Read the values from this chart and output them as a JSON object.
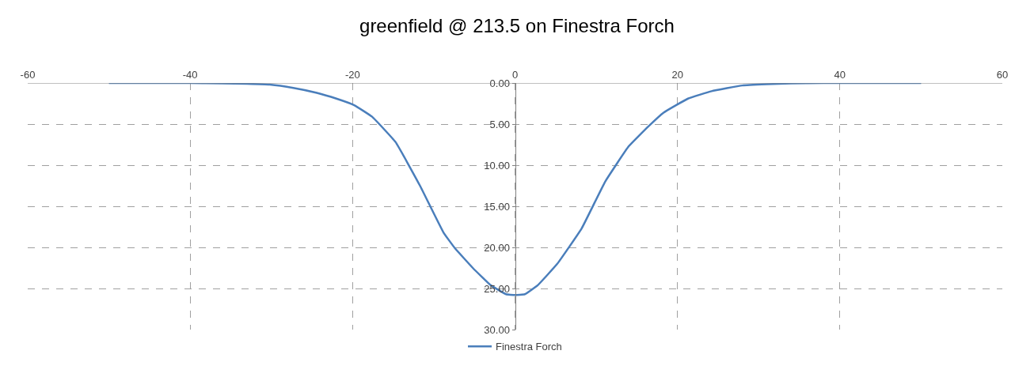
{
  "chart_data": {
    "type": "line",
    "title": "greenfield @ 213.5 on Finestra Forch",
    "series": [
      {
        "name": "Finestra Forch",
        "color": "#4a7ebb",
        "x": [
          -50,
          -40,
          -36,
          -33,
          -30.2,
          -27.3,
          -24.4,
          -22,
          -19.8,
          -17.6,
          -14.7,
          -11.7,
          -8.8,
          -7.4,
          -5.2,
          -3,
          -1.1,
          0,
          1.2,
          2.8,
          5.2,
          8.2,
          11.1,
          14,
          16.4,
          18.3,
          21.3,
          24.2,
          28,
          31,
          34,
          38,
          50
        ],
        "values": [
          0,
          0,
          0.05,
          0.1,
          0.2,
          0.6,
          1.2,
          1.9,
          2.7,
          4.1,
          7.2,
          12.5,
          18.2,
          20.1,
          22.5,
          24.6,
          25.7,
          25.8,
          25.7,
          24.6,
          22.0,
          17.7,
          12.0,
          7.7,
          5.3,
          3.6,
          1.9,
          1.0,
          0.3,
          0.15,
          0.05,
          0,
          0
        ]
      }
    ],
    "xlim": [
      -60,
      60
    ],
    "xticks": [
      -60,
      -40,
      -20,
      0,
      20,
      40,
      60
    ],
    "ylim": [
      30,
      0
    ],
    "yticks": [
      {
        "value": 0,
        "label": "0.00"
      },
      {
        "value": 5,
        "label": "5.00"
      },
      {
        "value": 10,
        "label": "10.00"
      },
      {
        "value": 15,
        "label": "15.00"
      },
      {
        "value": 20,
        "label": "20.00"
      },
      {
        "value": 25,
        "label": "25.00"
      },
      {
        "value": 30,
        "label": "30.00"
      }
    ],
    "grid": true,
    "legend": "bottom",
    "marker": "none",
    "line_style": "solid"
  }
}
